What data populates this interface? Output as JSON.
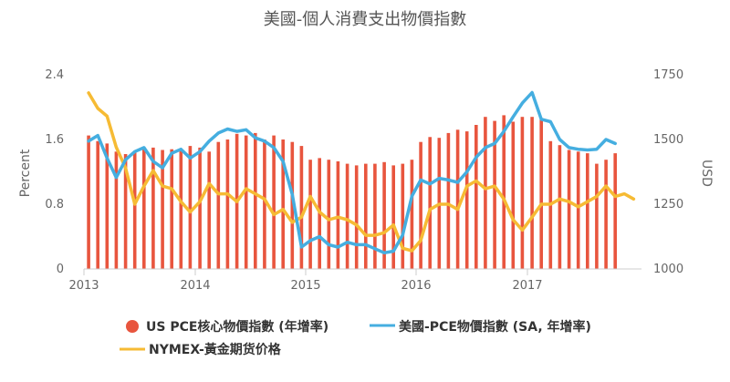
{
  "chart_data": {
    "type": "bar+line",
    "title": "美國-個人消費支出物價指數",
    "x_tick_labels": [
      "2013",
      "2014",
      "2015",
      "2016",
      "2017"
    ],
    "ylabel_left": "Percent",
    "ylabel_right": "USD",
    "ylim_left": [
      0,
      2.4
    ],
    "ylim_right": [
      1000,
      1750
    ],
    "y_ticks_left": [
      "0",
      "0.8",
      "1.6",
      "2.4"
    ],
    "y_ticks_right": [
      "1000",
      "1250",
      "1500",
      "1750"
    ],
    "grid": false,
    "legend_position": "bottom",
    "series": [
      {
        "name": "US PCE核心物價指數 (年增率)",
        "type": "bar",
        "axis": "left",
        "color": "#e8553e",
        "x": [
          "2013-01",
          "2013-02",
          "2013-03",
          "2013-04",
          "2013-05",
          "2013-06",
          "2013-07",
          "2013-08",
          "2013-09",
          "2013-10",
          "2013-11",
          "2013-12",
          "2014-01",
          "2014-02",
          "2014-03",
          "2014-04",
          "2014-05",
          "2014-06",
          "2014-07",
          "2014-08",
          "2014-09",
          "2014-10",
          "2014-11",
          "2014-12",
          "2015-01",
          "2015-02",
          "2015-03",
          "2015-04",
          "2015-05",
          "2015-06",
          "2015-07",
          "2015-08",
          "2015-09",
          "2015-10",
          "2015-11",
          "2015-12",
          "2016-01",
          "2016-02",
          "2016-03",
          "2016-04",
          "2016-05",
          "2016-06",
          "2016-07",
          "2016-08",
          "2016-09",
          "2016-10",
          "2016-11",
          "2016-12",
          "2017-01",
          "2017-02",
          "2017-03",
          "2017-04",
          "2017-05",
          "2017-06",
          "2017-07",
          "2017-08",
          "2017-09",
          "2017-10"
        ],
        "values": [
          1.65,
          1.58,
          1.55,
          1.45,
          1.42,
          1.45,
          1.48,
          1.5,
          1.47,
          1.48,
          1.46,
          1.52,
          1.5,
          1.45,
          1.57,
          1.6,
          1.67,
          1.65,
          1.68,
          1.6,
          1.65,
          1.6,
          1.57,
          1.52,
          1.35,
          1.37,
          1.35,
          1.33,
          1.3,
          1.28,
          1.3,
          1.3,
          1.32,
          1.28,
          1.3,
          1.35,
          1.57,
          1.63,
          1.62,
          1.68,
          1.72,
          1.7,
          1.78,
          1.88,
          1.83,
          1.9,
          1.82,
          1.88,
          1.88,
          1.85,
          1.58,
          1.53,
          1.47,
          1.45,
          1.43,
          1.3,
          1.35,
          1.43
        ]
      },
      {
        "name": "美國-PCE物價指數 (SA, 年增率)",
        "type": "line",
        "axis": "left",
        "color": "#45aee0",
        "x": [
          "2013-01",
          "2013-02",
          "2013-03",
          "2013-04",
          "2013-05",
          "2013-06",
          "2013-07",
          "2013-08",
          "2013-09",
          "2013-10",
          "2013-11",
          "2013-12",
          "2014-01",
          "2014-02",
          "2014-03",
          "2014-04",
          "2014-05",
          "2014-06",
          "2014-07",
          "2014-08",
          "2014-09",
          "2014-10",
          "2014-11",
          "2014-12",
          "2015-01",
          "2015-02",
          "2015-03",
          "2015-04",
          "2015-05",
          "2015-06",
          "2015-07",
          "2015-08",
          "2015-09",
          "2015-10",
          "2015-11",
          "2015-12",
          "2016-01",
          "2016-02",
          "2016-03",
          "2016-04",
          "2016-05",
          "2016-06",
          "2016-07",
          "2016-08",
          "2016-09",
          "2016-10",
          "2016-11",
          "2016-12",
          "2017-01",
          "2017-02",
          "2017-03",
          "2017-04",
          "2017-05",
          "2017-06",
          "2017-07",
          "2017-08",
          "2017-09",
          "2017-10"
        ],
        "values": [
          1.58,
          1.65,
          1.37,
          1.13,
          1.35,
          1.45,
          1.5,
          1.33,
          1.25,
          1.43,
          1.48,
          1.37,
          1.45,
          1.58,
          1.68,
          1.73,
          1.7,
          1.72,
          1.62,
          1.58,
          1.5,
          1.33,
          0.92,
          0.27,
          0.35,
          0.4,
          0.3,
          0.27,
          0.33,
          0.3,
          0.3,
          0.25,
          0.2,
          0.22,
          0.42,
          0.9,
          1.1,
          1.05,
          1.12,
          1.1,
          1.07,
          1.2,
          1.38,
          1.5,
          1.55,
          1.7,
          1.88,
          2.05,
          2.18,
          1.85,
          1.82,
          1.6,
          1.5,
          1.48,
          1.47,
          1.48,
          1.6,
          1.55
        ]
      },
      {
        "name": "NYMEX-黃金期货价格",
        "type": "line",
        "axis": "right",
        "color": "#f6bb34",
        "x": [
          "2013-01",
          "2013-02",
          "2013-03",
          "2013-04",
          "2013-05",
          "2013-06",
          "2013-07",
          "2013-08",
          "2013-09",
          "2013-10",
          "2013-11",
          "2013-12",
          "2014-01",
          "2014-02",
          "2014-03",
          "2014-04",
          "2014-05",
          "2014-06",
          "2014-07",
          "2014-08",
          "2014-09",
          "2014-10",
          "2014-11",
          "2014-12",
          "2015-01",
          "2015-02",
          "2015-03",
          "2015-04",
          "2015-05",
          "2015-06",
          "2015-07",
          "2015-08",
          "2015-09",
          "2015-10",
          "2015-11",
          "2015-12",
          "2016-01",
          "2016-02",
          "2016-03",
          "2016-04",
          "2016-05",
          "2016-06",
          "2016-07",
          "2016-08",
          "2016-09",
          "2016-10",
          "2016-11",
          "2016-12",
          "2017-01",
          "2017-02",
          "2017-03",
          "2017-04",
          "2017-05",
          "2017-06",
          "2017-07",
          "2017-08",
          "2017-09",
          "2017-10",
          "2017-11",
          "2017-12"
        ],
        "values": [
          1680,
          1620,
          1590,
          1470,
          1390,
          1250,
          1320,
          1380,
          1320,
          1310,
          1260,
          1220,
          1260,
          1330,
          1290,
          1290,
          1260,
          1310,
          1290,
          1270,
          1210,
          1230,
          1180,
          1200,
          1280,
          1220,
          1190,
          1200,
          1190,
          1170,
          1130,
          1130,
          1140,
          1170,
          1080,
          1070,
          1110,
          1230,
          1250,
          1250,
          1230,
          1320,
          1340,
          1310,
          1320,
          1270,
          1190,
          1150,
          1200,
          1250,
          1250,
          1270,
          1260,
          1240,
          1260,
          1280,
          1320,
          1280,
          1290,
          1270
        ]
      }
    ]
  }
}
